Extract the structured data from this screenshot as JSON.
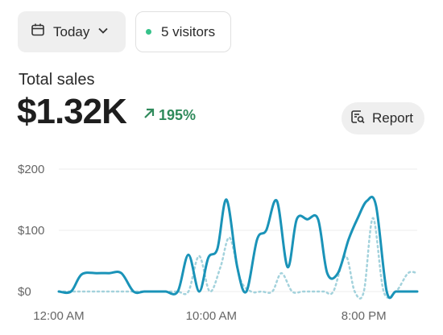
{
  "filters": {
    "date_label": "Today",
    "visitors_label": "5 visitors"
  },
  "summary": {
    "title": "Total sales",
    "total": "$1.32K",
    "change": "195%"
  },
  "report_button": {
    "label": "Report"
  },
  "colors": {
    "primary": "#1a93b8",
    "comparison": "#a3d2dc",
    "positive": "#2f8a5b",
    "live_dot": "#36c28a"
  },
  "chart_data": {
    "type": "line",
    "ylim": [
      0,
      200
    ],
    "yticks": [
      0,
      100,
      200
    ],
    "ytick_labels": [
      "$0",
      "$100",
      "$200"
    ],
    "xlim": [
      0,
      23.5
    ],
    "xticks": [
      {
        "x": 0,
        "label": "12:00 AM"
      },
      {
        "x": 10,
        "label": "10:00 AM"
      },
      {
        "x": 20,
        "label": "8:00 PM"
      }
    ],
    "grid": true,
    "series": [
      {
        "style": "solid",
        "color": "#1a93b8",
        "x": [
          0,
          0.8,
          1.5,
          2.5,
          3.3,
          4.1,
          4.9,
          5.6,
          6.3,
          7.0,
          7.8,
          8.5,
          9.2,
          9.8,
          10.4,
          11.0,
          11.7,
          12.3,
          13.0,
          13.6,
          14.3,
          15.0,
          15.6,
          16.3,
          17.0,
          17.6,
          18.3,
          19.0,
          19.6,
          20.2,
          20.8,
          21.5,
          22.1,
          22.8,
          23.5
        ],
        "y": [
          0,
          0,
          28,
          30,
          30,
          30,
          0,
          0,
          0,
          0,
          0,
          60,
          0,
          55,
          70,
          150,
          40,
          0,
          85,
          100,
          148,
          40,
          118,
          118,
          118,
          30,
          30,
          85,
          120,
          148,
          140,
          0,
          0,
          0,
          0
        ]
      },
      {
        "style": "dashed",
        "color": "#a3d2dc",
        "x": [
          0,
          0.8,
          1.6,
          2.5,
          3.3,
          4.1,
          4.9,
          5.6,
          6.3,
          7.0,
          7.8,
          8.5,
          9.2,
          9.9,
          10.6,
          11.2,
          11.9,
          12.6,
          13.3,
          14.0,
          14.6,
          15.3,
          16.0,
          16.7,
          17.4,
          18.0,
          18.8,
          19.4,
          20.0,
          20.6,
          21.3,
          22.1,
          22.9,
          23.5
        ],
        "y": [
          0,
          0,
          0,
          0,
          0,
          0,
          0,
          0,
          0,
          0,
          0,
          0,
          58,
          0,
          40,
          88,
          20,
          0,
          0,
          0,
          30,
          0,
          0,
          0,
          0,
          0,
          58,
          0,
          0,
          120,
          0,
          0,
          30,
          30
        ]
      }
    ]
  }
}
